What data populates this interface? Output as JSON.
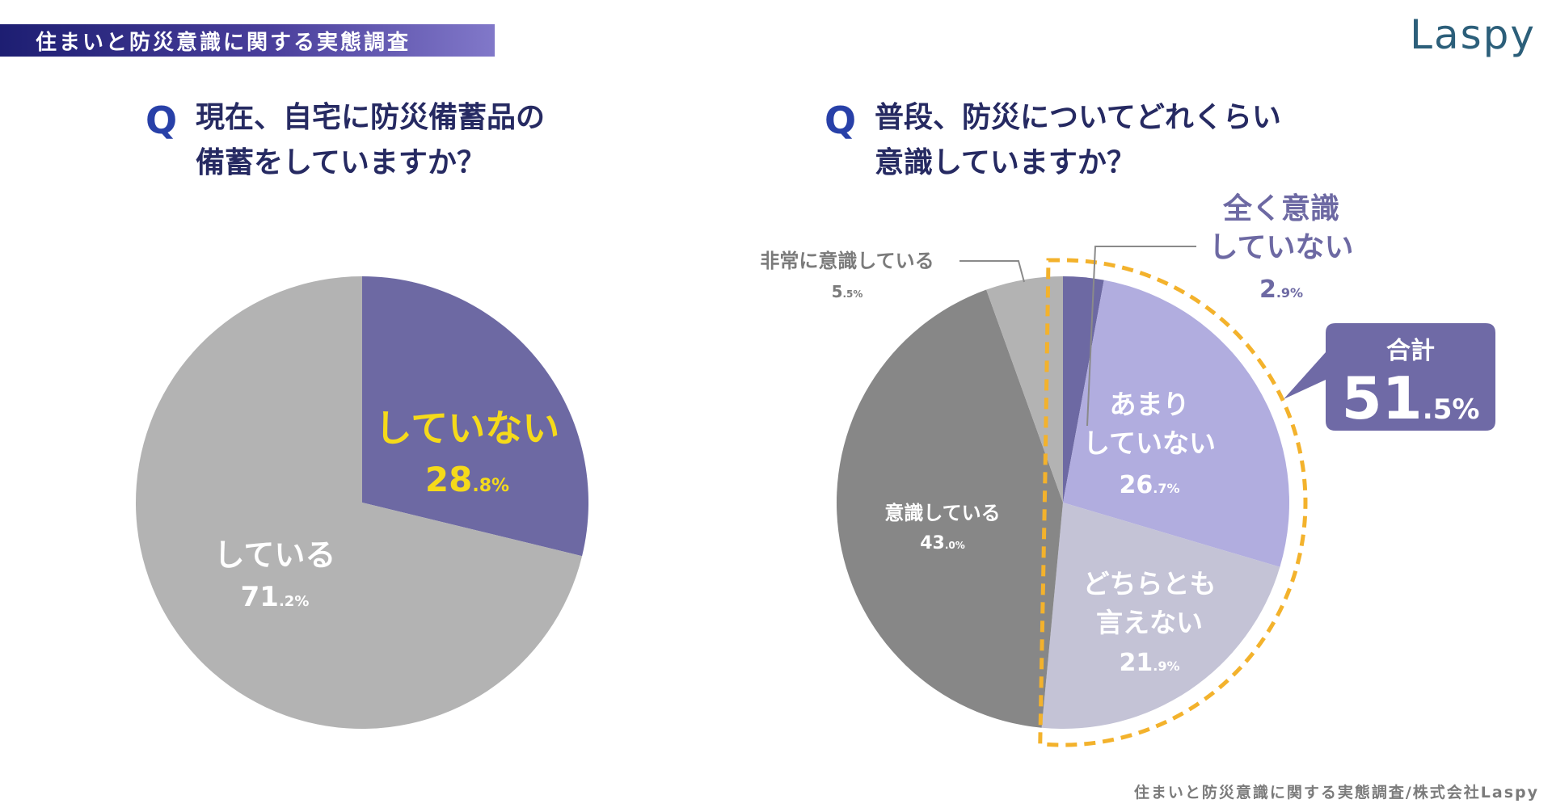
{
  "header": {
    "banner_title": "住まいと防災意識に関する実態調査",
    "logo": "Laspy"
  },
  "footer": {
    "source": "住まいと防災意識に関する実態調査/株式会社Laspy"
  },
  "colors": {
    "navy": "#262a62",
    "q_blue": "#2840a8",
    "yellow": "#f5da1a",
    "orange_dash": "#f3b22c",
    "badge": "#6f6aa6"
  },
  "chart_data": [
    {
      "type": "pie",
      "question_mark": "Q",
      "title_lines": [
        "現在、自宅に防災備蓄品の",
        "備蓄をしていますか？"
      ],
      "slices": [
        {
          "label": "していない",
          "value_int": "28",
          "value_dec": ".8%",
          "value": 28.8,
          "color": "#6d69a3",
          "label_color": "#f5da1a"
        },
        {
          "label": "している",
          "value_int": "71",
          "value_dec": ".2%",
          "value": 71.2,
          "color": "#b3b3b3",
          "label_color": "#ffffff"
        }
      ]
    },
    {
      "type": "pie",
      "question_mark": "Q",
      "title_lines": [
        "普段、防災についてどれくらい",
        "意識していますか？"
      ],
      "slices": [
        {
          "label_lines": [
            "全く意識",
            "していない"
          ],
          "value_int": "2",
          "value_dec": ".9%",
          "value": 2.9,
          "color": "#6d69a3",
          "label_color": "#6d69a3"
        },
        {
          "label_lines": [
            "あまり",
            "していない"
          ],
          "value_int": "26",
          "value_dec": ".7%",
          "value": 26.7,
          "color": "#b1addf",
          "label_color": "#ffffff"
        },
        {
          "label_lines": [
            "どちらとも",
            "言えない"
          ],
          "value_int": "21",
          "value_dec": ".9%",
          "value": 21.9,
          "color": "#c4c3d6",
          "label_color": "#ffffff"
        },
        {
          "label_lines": [
            "意識している"
          ],
          "value_int": "43",
          "value_dec": ".0%",
          "value": 43.0,
          "color": "#878787",
          "label_color": "#ffffff"
        },
        {
          "label_lines": [
            "非常に意識している"
          ],
          "value_int": "5",
          "value_dec": ".5%",
          "value": 5.5,
          "color": "#b3b3b3",
          "label_color": "#7b7b7b"
        }
      ],
      "callout": {
        "title": "合計",
        "value_int": "51",
        "value_dec": ".5%"
      }
    }
  ]
}
